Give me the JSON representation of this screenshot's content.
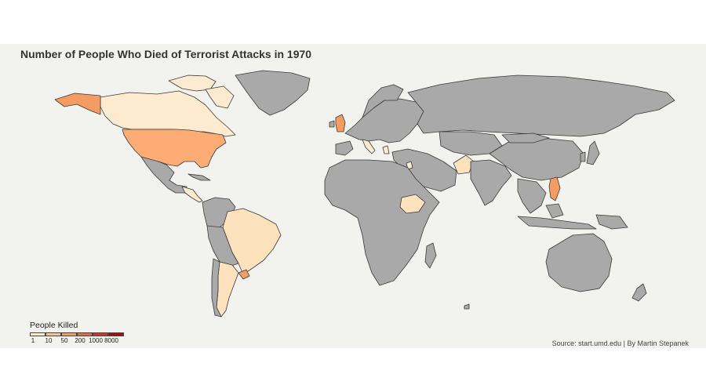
{
  "title": "Number of People Who Died of Terrorist Attacks in 1970",
  "legend": {
    "title": "People Killed",
    "labels": [
      "1",
      "10",
      "50",
      "200",
      "1000",
      "8000"
    ],
    "colors": [
      "#fdebd0",
      "#fcc592",
      "#f59c62",
      "#e36d47",
      "#c93a2c",
      "#a01010"
    ]
  },
  "source": "Source: start.umd.edu | By Martin Stepanek",
  "colors": {
    "background": "#f2f2ee",
    "no_data": "#a9a9a9",
    "border": "#3a3a3a"
  },
  "highlighted_countries": [
    {
      "name": "United States",
      "level": "10-50"
    },
    {
      "name": "Canada",
      "level": "1-10"
    },
    {
      "name": "Brazil",
      "level": "1-10"
    },
    {
      "name": "Argentina",
      "level": "1-10"
    },
    {
      "name": "Uruguay",
      "level": "10-50"
    },
    {
      "name": "Guatemala",
      "level": "1-10"
    },
    {
      "name": "United Kingdom",
      "level": "50-200"
    },
    {
      "name": "Ethiopia",
      "level": "1-10"
    },
    {
      "name": "Pakistan",
      "level": "1-10"
    },
    {
      "name": "Philippines",
      "level": "10-50"
    },
    {
      "name": "Jordan",
      "level": "1-10"
    },
    {
      "name": "Greece",
      "level": "1-10"
    },
    {
      "name": "Italy",
      "level": "1-10"
    }
  ]
}
